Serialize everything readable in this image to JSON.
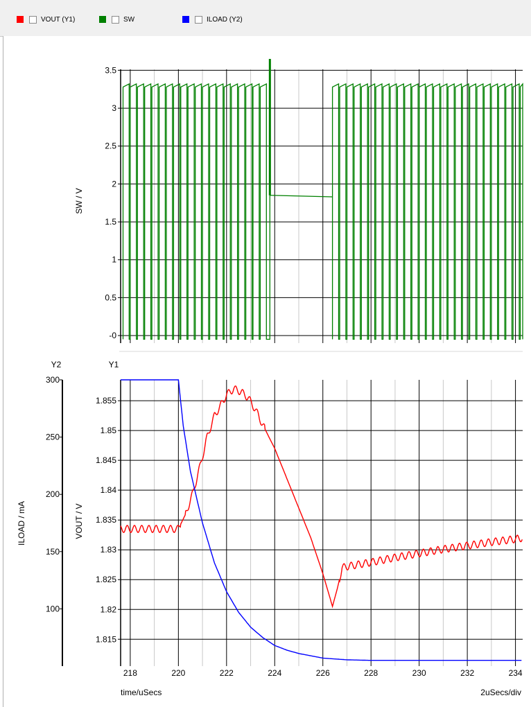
{
  "legend": {
    "items": [
      {
        "label": "VOUT (Y1)",
        "color": "#ff0000"
      },
      {
        "label": "SW",
        "color": "#008000"
      },
      {
        "label": "ILOAD (Y2)",
        "color": "#0000ff"
      }
    ]
  },
  "footer": {
    "time_label": "time/uSecs",
    "div_label": "2uSecs/div"
  },
  "chart_data": [
    {
      "type": "line",
      "name": "sw-plot",
      "ylabel": "SW / V",
      "xlim": [
        217.6,
        234.3
      ],
      "ylim": [
        -0.1,
        3.65
      ],
      "y_ticks": [
        "3.5",
        "3",
        "2.5",
        "2",
        "1.5",
        "1",
        "0.5",
        "-0"
      ],
      "y_tick_values": [
        3.5,
        3,
        2.5,
        2,
        1.5,
        1,
        0.5,
        0
      ],
      "series": [
        {
          "name": "SW",
          "color": "#008000",
          "description_points": {
            "switching_period_us": 0.3,
            "high_level_v": 3.3,
            "low_level_v": -0.05,
            "burst1_range_us": [
              217.7,
              223.7
            ],
            "spike_at_us": 223.8,
            "plateau_range_us": [
              223.8,
              226.4
            ],
            "plateau_level_v": [
              1.85,
              1.83
            ],
            "burst2_range_us": [
              226.4,
              234.3
            ]
          }
        }
      ]
    },
    {
      "type": "line",
      "name": "vout-iload-plot",
      "xlabel": "time/uSecs",
      "x_ticks": [
        "218",
        "220",
        "222",
        "224",
        "226",
        "228",
        "230",
        "232",
        "234"
      ],
      "x_tick_values": [
        218,
        220,
        222,
        224,
        226,
        228,
        230,
        232,
        234
      ],
      "xlim": [
        217.6,
        234.3
      ],
      "y1": {
        "axis_label": "Y1",
        "ylabel": "VOUT / V",
        "ylim": [
          1.8105,
          1.8585
        ],
        "y_ticks": [
          "1.855",
          "1.85",
          "1.845",
          "1.84",
          "1.835",
          "1.83",
          "1.825",
          "1.82",
          "1.815"
        ],
        "y_tick_values": [
          1.855,
          1.85,
          1.845,
          1.84,
          1.835,
          1.83,
          1.825,
          1.82,
          1.815
        ]
      },
      "y2": {
        "axis_label": "Y2",
        "ylabel": "ILOAD / mA",
        "ylim": [
          50,
          300
        ],
        "y_ticks": [
          "300",
          "250",
          "200",
          "150",
          "100"
        ],
        "y_tick_values": [
          300,
          250,
          200,
          150,
          100
        ]
      },
      "series": [
        {
          "name": "VOUT (Y1)",
          "color": "#ff0000",
          "x": [
            217.6,
            218.0,
            219.0,
            220.0,
            220.3,
            220.6,
            220.9,
            221.2,
            221.5,
            221.8,
            222.0,
            222.3,
            222.6,
            222.9,
            223.2,
            223.5,
            224.0,
            224.5,
            225.0,
            225.5,
            226.0,
            226.4,
            226.6,
            226.8,
            227.0,
            228.0,
            229.0,
            230.0,
            231.0,
            232.0,
            233.0,
            234.0,
            234.3
          ],
          "y": [
            1.8335,
            1.8335,
            1.8335,
            1.8335,
            1.836,
            1.8395,
            1.844,
            1.849,
            1.8525,
            1.8545,
            1.856,
            1.857,
            1.8565,
            1.8555,
            1.8535,
            1.851,
            1.847,
            1.842,
            1.837,
            1.832,
            1.826,
            1.8205,
            1.8235,
            1.827,
            1.8272,
            1.8279,
            1.8287,
            1.8294,
            1.8301,
            1.8307,
            1.8313,
            1.8318,
            1.832
          ],
          "ripple_amplitude_v": 0.0006,
          "ripple_period_us": 0.3
        },
        {
          "name": "ILOAD (Y2)",
          "color": "#0000ff",
          "x": [
            217.6,
            219.0,
            220.0,
            220.2,
            220.5,
            221.0,
            221.5,
            222.0,
            222.5,
            223.0,
            223.5,
            224.0,
            224.5,
            225.0,
            226.0,
            227.0,
            228.0,
            230.0,
            232.0,
            234.3
          ],
          "y": [
            300,
            300,
            300,
            260,
            220,
            175,
            140,
            115,
            97,
            84,
            75,
            68,
            64,
            61,
            57,
            55.5,
            55,
            55,
            55,
            55
          ]
        }
      ]
    }
  ]
}
